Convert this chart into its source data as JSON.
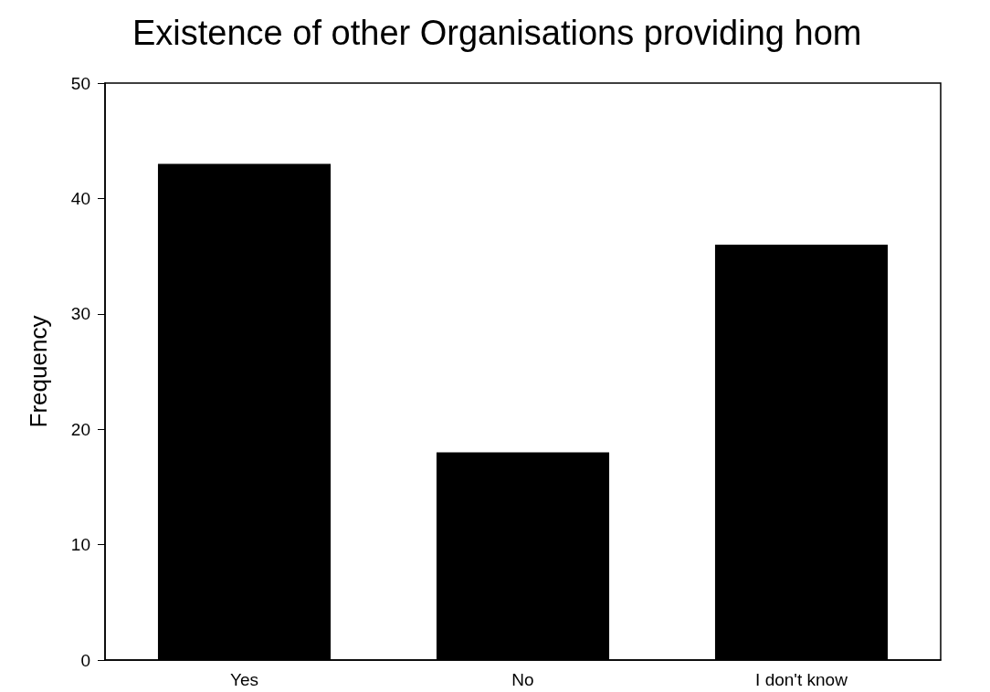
{
  "chart_data": {
    "type": "bar",
    "title": "Existence of other Organisations providing hom",
    "categories": [
      "Yes",
      "No",
      "I don't know"
    ],
    "values": [
      43,
      18,
      36
    ],
    "color": "#000000",
    "ylabel": "Frequency",
    "ylim": [
      0,
      50
    ],
    "yticks": [
      0,
      10,
      20,
      30,
      40,
      50
    ],
    "grid": false
  }
}
